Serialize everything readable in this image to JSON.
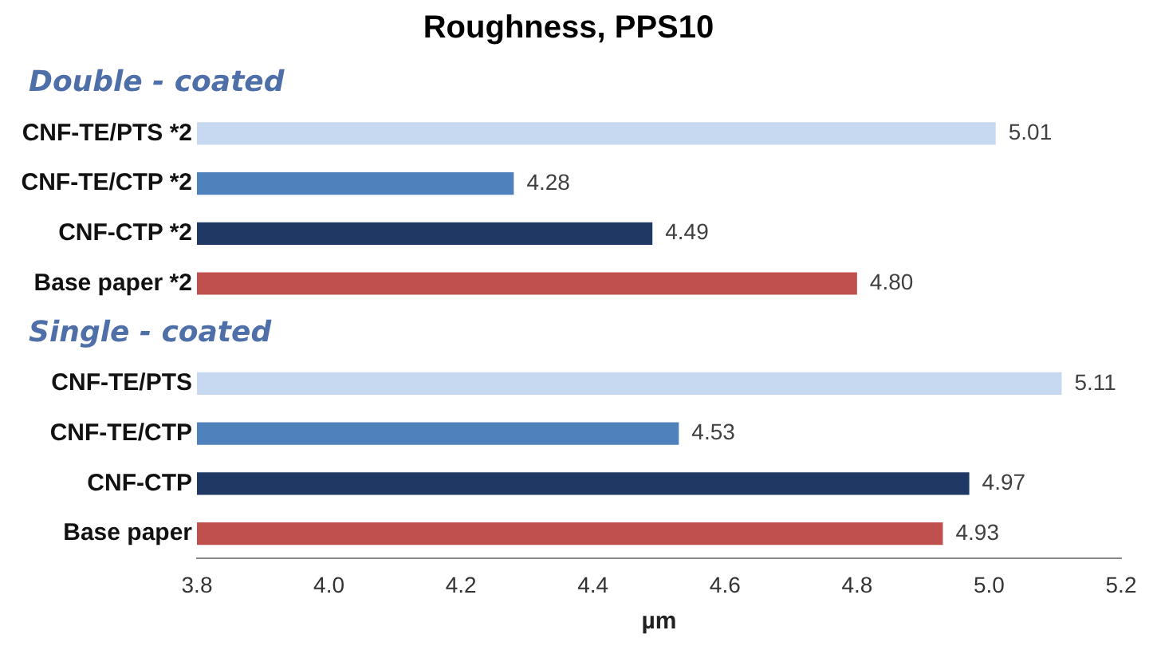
{
  "chart_data": {
    "type": "bar",
    "orientation": "horizontal",
    "title": "Roughness, PPS10",
    "xlabel": "µm",
    "categories": [
      "CNF-TE/PTS *2",
      "CNF-TE/CTP *2",
      "CNF-CTP *2",
      "Base paper *2",
      null,
      "CNF-TE/PTS",
      "CNF-TE/CTP",
      "CNF-CTP",
      "Base paper"
    ],
    "values": [
      5.01,
      4.28,
      4.49,
      4.8,
      null,
      5.11,
      4.53,
      4.97,
      4.93
    ],
    "colors": [
      "#c6d9f1",
      "#4f81bd",
      "#1f3864",
      "#c0504d",
      "#ffffff",
      "#c6d9f1",
      "#4f81bd",
      "#1f3864",
      "#c0504d"
    ],
    "value_labels": [
      "5.01",
      "4.28",
      "4.49",
      "4.80",
      null,
      "5.11",
      "4.53",
      "4.97",
      "4.93"
    ],
    "xlim": [
      3.8,
      5.2
    ],
    "xticks": [
      3.8,
      {
        "value": 4,
        "label": "4.0"
      },
      4.2,
      4.4,
      4.6,
      4.8,
      {
        "value": 5,
        "label": "5.0"
      },
      5.2
    ],
    "annotations": [
      "Double - coated",
      "Single - coated"
    ],
    "grid": false,
    "legend": false
  }
}
